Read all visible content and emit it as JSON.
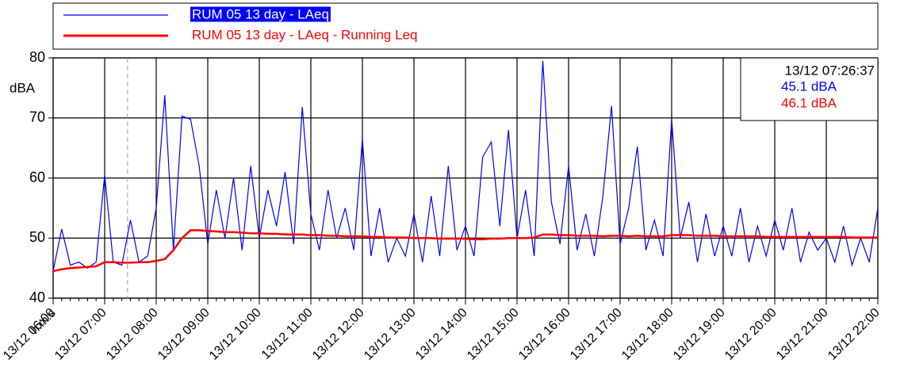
{
  "chart_data": {
    "type": "line",
    "legend": "top",
    "y_label": "dBA",
    "x_label": "h:m:s",
    "cursor": {
      "time": "13/12 07:26:37",
      "labels": [
        "45.1 dBA",
        "46.1 dBA"
      ]
    },
    "xlim": [
      "13/12 06:00",
      "13/12 22:00"
    ],
    "xticks": [
      "13/12 06:00",
      "13/12 07:00",
      "13/12 08:00",
      "13/12 09:00",
      "13/12 10:00",
      "13/12 11:00",
      "13/12 12:00",
      "13/12 13:00",
      "13/12 14:00",
      "13/12 15:00",
      "13/12 16:00",
      "13/12 17:00",
      "13/12 18:00",
      "13/12 19:00",
      "13/12 20:00",
      "13/12 21:00",
      "13/12 22:00"
    ],
    "ylim": [
      40,
      80
    ],
    "yticks": [
      40,
      50,
      60,
      70,
      80
    ],
    "grid": true,
    "x": [
      "13/12 06:00",
      "13/12 06:10",
      "13/12 06:20",
      "13/12 06:30",
      "13/12 06:40",
      "13/12 06:50",
      "13/12 07:00",
      "13/12 07:10",
      "13/12 07:20",
      "13/12 07:30",
      "13/12 07:40",
      "13/12 07:50",
      "13/12 08:00",
      "13/12 08:10",
      "13/12 08:20",
      "13/12 08:30",
      "13/12 08:40",
      "13/12 08:50",
      "13/12 09:00",
      "13/12 09:10",
      "13/12 09:20",
      "13/12 09:30",
      "13/12 09:40",
      "13/12 09:50",
      "13/12 10:00",
      "13/12 10:10",
      "13/12 10:20",
      "13/12 10:30",
      "13/12 10:40",
      "13/12 10:50",
      "13/12 11:00",
      "13/12 11:10",
      "13/12 11:20",
      "13/12 11:30",
      "13/12 11:40",
      "13/12 11:50",
      "13/12 12:00",
      "13/12 12:10",
      "13/12 12:20",
      "13/12 12:30",
      "13/12 12:40",
      "13/12 12:50",
      "13/12 13:00",
      "13/12 13:10",
      "13/12 13:20",
      "13/12 13:30",
      "13/12 13:40",
      "13/12 13:50",
      "13/12 14:00",
      "13/12 14:10",
      "13/12 14:20",
      "13/12 14:30",
      "13/12 14:40",
      "13/12 14:50",
      "13/12 15:00",
      "13/12 15:10",
      "13/12 15:20",
      "13/12 15:30",
      "13/12 15:40",
      "13/12 15:50",
      "13/12 16:00",
      "13/12 16:10",
      "13/12 16:20",
      "13/12 16:30",
      "13/12 16:40",
      "13/12 16:50",
      "13/12 17:00",
      "13/12 17:10",
      "13/12 17:20",
      "13/12 17:30",
      "13/12 17:40",
      "13/12 17:50",
      "13/12 18:00",
      "13/12 18:10",
      "13/12 18:20",
      "13/12 18:30",
      "13/12 18:40",
      "13/12 18:50",
      "13/12 19:00",
      "13/12 19:10",
      "13/12 19:20",
      "13/12 19:30",
      "13/12 19:40",
      "13/12 19:50",
      "13/12 20:00",
      "13/12 20:10",
      "13/12 20:20",
      "13/12 20:30",
      "13/12 20:40",
      "13/12 20:50",
      "13/12 21:00",
      "13/12 21:10",
      "13/12 21:20",
      "13/12 21:30",
      "13/12 21:40",
      "13/12 21:50",
      "13/12 22:00"
    ],
    "series": [
      {
        "name": "RUM 05 13 day - LAeq",
        "color": "#0000ff",
        "values": [
          44.5,
          51.5,
          45.5,
          46,
          45,
          46,
          60.5,
          46,
          45.5,
          53,
          46,
          47,
          55,
          73.8,
          48,
          70.3,
          69.8,
          62,
          49,
          58,
          50,
          60,
          48,
          62,
          50,
          58,
          52,
          61,
          49,
          71.8,
          54,
          48,
          58,
          50,
          55,
          48,
          66.5,
          47,
          55,
          46,
          50,
          47,
          54,
          46,
          57,
          47,
          62,
          48,
          52,
          47,
          63.5,
          66,
          52,
          68,
          50,
          58,
          47,
          79.5,
          56,
          49,
          62,
          48,
          54,
          47,
          57,
          72,
          49,
          55,
          65.2,
          48,
          53,
          47,
          69.8,
          50,
          56,
          46,
          54,
          47,
          52,
          47,
          55,
          46,
          52,
          47,
          53,
          48,
          55,
          46,
          51,
          48,
          50,
          46,
          52,
          45.5,
          50,
          46,
          55
        ]
      },
      {
        "name": "RUM 05 13 day - LAeq - Running Leq",
        "color": "#ff0000",
        "values": [
          44.5,
          44.8,
          45,
          45.1,
          45.2,
          45.3,
          46,
          46,
          45.9,
          45.9,
          46,
          46,
          46.2,
          46.5,
          48,
          50,
          51.3,
          51.3,
          51.2,
          51.1,
          51,
          51,
          50.9,
          50.8,
          50.8,
          50.7,
          50.7,
          50.6,
          50.6,
          50.6,
          50.5,
          50.5,
          50.4,
          50.4,
          50.3,
          50.3,
          50.3,
          50.2,
          50.2,
          50.1,
          50.1,
          50.1,
          50,
          50,
          50,
          49.9,
          49.9,
          49.9,
          49.9,
          49.8,
          49.8,
          49.9,
          49.9,
          50,
          50,
          50,
          50.1,
          50.6,
          50.6,
          50.5,
          50.5,
          50.4,
          50.4,
          50.4,
          50.3,
          50.4,
          50.4,
          50.3,
          50.4,
          50.3,
          50.3,
          50.3,
          50.5,
          50.5,
          50.5,
          50.4,
          50.4,
          50.4,
          50.3,
          50.3,
          50.3,
          50.3,
          50.3,
          50.2,
          50.2,
          50.2,
          50.2,
          50.2,
          50.2,
          50.2,
          50.2,
          50.2,
          50.2,
          50.1,
          50.1,
          50.1,
          50.1
        ]
      }
    ]
  }
}
